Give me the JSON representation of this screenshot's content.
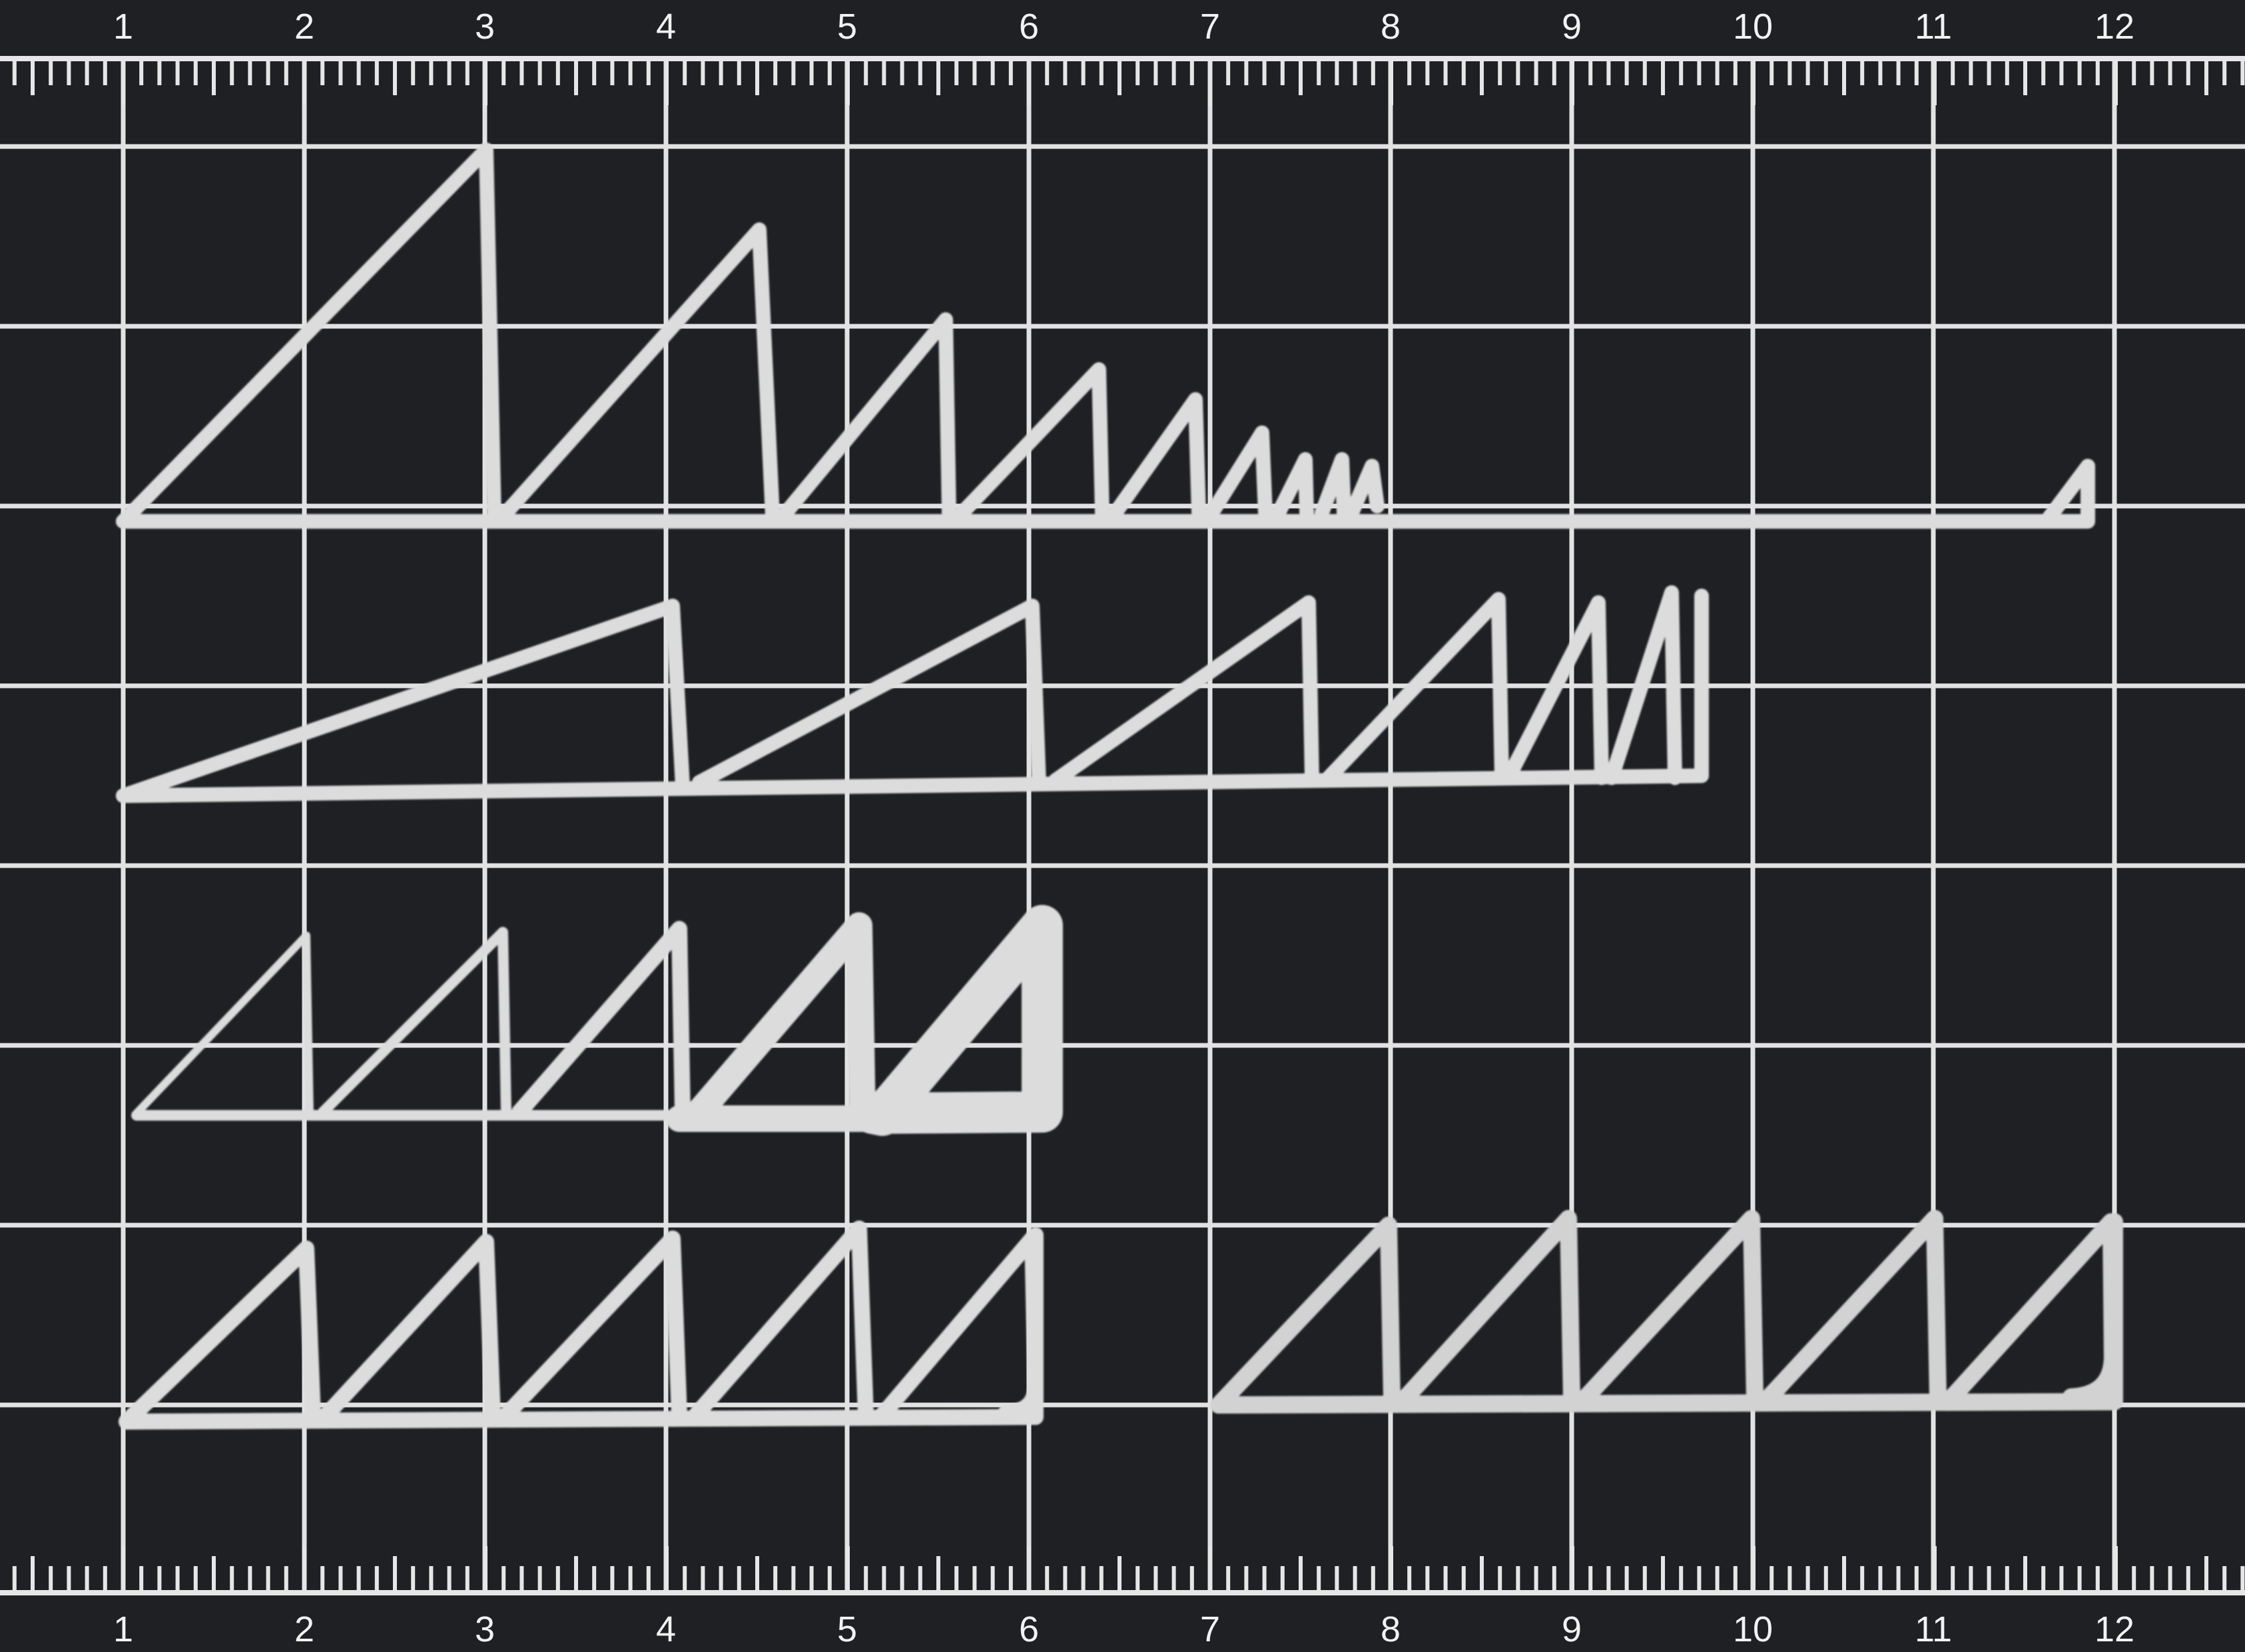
{
  "ruler": {
    "top_labels": [
      "1",
      "2",
      "3",
      "4",
      "5",
      "6",
      "7",
      "8",
      "9",
      "10",
      "11",
      "12"
    ],
    "bottom_labels": [
      "1",
      "2",
      "3",
      "4",
      "5",
      "6",
      "7",
      "8",
      "9",
      "10",
      "11",
      "12"
    ]
  },
  "colors": {
    "mat": "#1e2024",
    "grid": "#e6e6e6",
    "print": "#dcdcdc"
  }
}
